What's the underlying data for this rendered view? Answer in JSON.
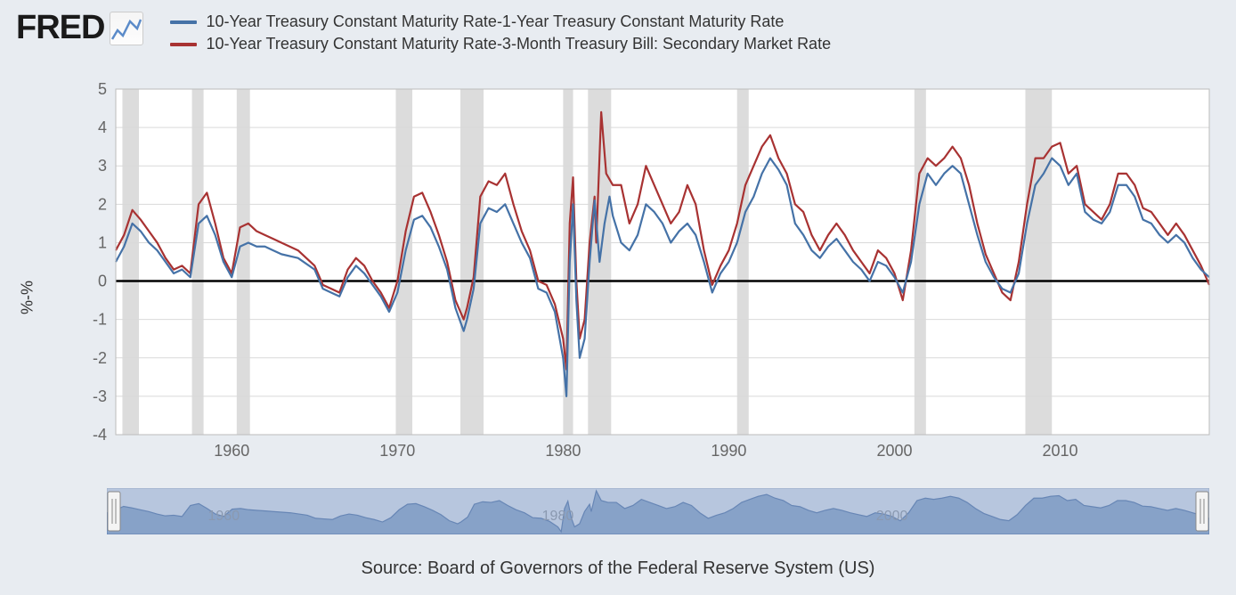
{
  "logo_text": "FRED",
  "legend": {
    "series1": {
      "label": "10-Year Treasury Constant Maturity Rate-1-Year Treasury Constant Maturity Rate",
      "color": "#4572a7"
    },
    "series2": {
      "label": "10-Year Treasury Constant Maturity Rate-3-Month Treasury Bill: Secondary Market Rate",
      "color": "#a83232"
    }
  },
  "y_axis": {
    "label": "%-%",
    "min": -4,
    "max": 5,
    "ticks": [
      -4,
      -3,
      -2,
      -1,
      0,
      1,
      2,
      3,
      4,
      5
    ],
    "tick_color": "#666",
    "tick_fontsize": 18
  },
  "x_axis": {
    "min": 1953,
    "max": 2019,
    "ticks": [
      1960,
      1970,
      1980,
      1990,
      2000,
      2010
    ],
    "tick_color": "#666",
    "tick_fontsize": 18
  },
  "chart": {
    "background": "#ffffff",
    "grid_color": "#d9d9d9",
    "zero_line_color": "#000000",
    "zero_line_width": 2.5,
    "line_width": 2.2,
    "recession_color": "#dcdcdc",
    "recessions": [
      [
        1953.4,
        1954.4
      ],
      [
        1957.6,
        1958.3
      ],
      [
        1960.3,
        1961.1
      ],
      [
        1969.9,
        1970.9
      ],
      [
        1973.8,
        1975.2
      ],
      [
        1980.0,
        1980.6
      ],
      [
        1981.5,
        1982.9
      ],
      [
        1990.5,
        1991.2
      ],
      [
        2001.2,
        2001.9
      ],
      [
        2007.9,
        2009.5
      ]
    ],
    "series1_color": "#4572a7",
    "series2_color": "#a83232",
    "series1": [
      [
        1953,
        0.5
      ],
      [
        1953.5,
        0.9
      ],
      [
        1954,
        1.5
      ],
      [
        1954.5,
        1.3
      ],
      [
        1955,
        1.0
      ],
      [
        1955.5,
        0.8
      ],
      [
        1956,
        0.5
      ],
      [
        1956.5,
        0.2
      ],
      [
        1957,
        0.3
      ],
      [
        1957.5,
        0.1
      ],
      [
        1958,
        1.5
      ],
      [
        1958.5,
        1.7
      ],
      [
        1959,
        1.2
      ],
      [
        1959.5,
        0.5
      ],
      [
        1960,
        0.1
      ],
      [
        1960.5,
        0.9
      ],
      [
        1961,
        1.0
      ],
      [
        1961.5,
        0.9
      ],
      [
        1962,
        0.9
      ],
      [
        1962.5,
        0.8
      ],
      [
        1963,
        0.7
      ],
      [
        1964,
        0.6
      ],
      [
        1965,
        0.3
      ],
      [
        1965.5,
        -0.2
      ],
      [
        1966,
        -0.3
      ],
      [
        1966.5,
        -0.4
      ],
      [
        1967,
        0.1
      ],
      [
        1967.5,
        0.4
      ],
      [
        1968,
        0.2
      ],
      [
        1968.5,
        -0.1
      ],
      [
        1969,
        -0.4
      ],
      [
        1969.5,
        -0.8
      ],
      [
        1970,
        -0.3
      ],
      [
        1970.5,
        0.8
      ],
      [
        1971,
        1.6
      ],
      [
        1971.5,
        1.7
      ],
      [
        1972,
        1.4
      ],
      [
        1972.5,
        0.9
      ],
      [
        1973,
        0.3
      ],
      [
        1973.5,
        -0.7
      ],
      [
        1974,
        -1.3
      ],
      [
        1974.2,
        -1.0
      ],
      [
        1974.6,
        -0.2
      ],
      [
        1975,
        1.5
      ],
      [
        1975.5,
        1.9
      ],
      [
        1976,
        1.8
      ],
      [
        1976.5,
        2.0
      ],
      [
        1977,
        1.5
      ],
      [
        1977.5,
        1.0
      ],
      [
        1978,
        0.6
      ],
      [
        1978.5,
        -0.2
      ],
      [
        1979,
        -0.3
      ],
      [
        1979.5,
        -0.8
      ],
      [
        1980,
        -2.0
      ],
      [
        1980.2,
        -3.0
      ],
      [
        1980.4,
        0.5
      ],
      [
        1980.6,
        2.0
      ],
      [
        1980.8,
        -0.5
      ],
      [
        1981,
        -2.0
      ],
      [
        1981.3,
        -1.5
      ],
      [
        1981.6,
        0.5
      ],
      [
        1981.9,
        2.1
      ],
      [
        1982.2,
        0.5
      ],
      [
        1982.5,
        1.5
      ],
      [
        1982.8,
        2.2
      ],
      [
        1983,
        1.7
      ],
      [
        1983.5,
        1.0
      ],
      [
        1984,
        0.8
      ],
      [
        1984.5,
        1.2
      ],
      [
        1985,
        2.0
      ],
      [
        1985.5,
        1.8
      ],
      [
        1986,
        1.5
      ],
      [
        1986.5,
        1.0
      ],
      [
        1987,
        1.3
      ],
      [
        1987.5,
        1.5
      ],
      [
        1988,
        1.2
      ],
      [
        1988.5,
        0.5
      ],
      [
        1989,
        -0.3
      ],
      [
        1989.5,
        0.2
      ],
      [
        1990,
        0.5
      ],
      [
        1990.5,
        1.0
      ],
      [
        1991,
        1.8
      ],
      [
        1991.5,
        2.2
      ],
      [
        1992,
        2.8
      ],
      [
        1992.5,
        3.2
      ],
      [
        1993,
        2.9
      ],
      [
        1993.5,
        2.5
      ],
      [
        1994,
        1.5
      ],
      [
        1994.5,
        1.2
      ],
      [
        1995,
        0.8
      ],
      [
        1995.5,
        0.6
      ],
      [
        1996,
        0.9
      ],
      [
        1996.5,
        1.1
      ],
      [
        1997,
        0.8
      ],
      [
        1997.5,
        0.5
      ],
      [
        1998,
        0.3
      ],
      [
        1998.5,
        0.0
      ],
      [
        1999,
        0.5
      ],
      [
        1999.5,
        0.4
      ],
      [
        2000,
        0.1
      ],
      [
        2000.5,
        -0.3
      ],
      [
        2001,
        0.5
      ],
      [
        2001.5,
        2.0
      ],
      [
        2002,
        2.8
      ],
      [
        2002.5,
        2.5
      ],
      [
        2003,
        2.8
      ],
      [
        2003.5,
        3.0
      ],
      [
        2004,
        2.8
      ],
      [
        2004.5,
        2.0
      ],
      [
        2005,
        1.2
      ],
      [
        2005.5,
        0.5
      ],
      [
        2006,
        0.1
      ],
      [
        2006.5,
        -0.2
      ],
      [
        2007,
        -0.3
      ],
      [
        2007.5,
        0.2
      ],
      [
        2008,
        1.5
      ],
      [
        2008.5,
        2.5
      ],
      [
        2009,
        2.8
      ],
      [
        2009.5,
        3.2
      ],
      [
        2010,
        3.0
      ],
      [
        2010.5,
        2.5
      ],
      [
        2011,
        2.8
      ],
      [
        2011.5,
        1.8
      ],
      [
        2012,
        1.6
      ],
      [
        2012.5,
        1.5
      ],
      [
        2013,
        1.8
      ],
      [
        2013.5,
        2.5
      ],
      [
        2014,
        2.5
      ],
      [
        2014.5,
        2.2
      ],
      [
        2015,
        1.6
      ],
      [
        2015.5,
        1.5
      ],
      [
        2016,
        1.2
      ],
      [
        2016.5,
        1.0
      ],
      [
        2017,
        1.2
      ],
      [
        2017.5,
        1.0
      ],
      [
        2018,
        0.6
      ],
      [
        2018.5,
        0.3
      ],
      [
        2019,
        0.1
      ]
    ],
    "series2": [
      [
        1953,
        0.8
      ],
      [
        1953.5,
        1.2
      ],
      [
        1954,
        1.85
      ],
      [
        1954.5,
        1.6
      ],
      [
        1955,
        1.3
      ],
      [
        1955.5,
        1.0
      ],
      [
        1956,
        0.6
      ],
      [
        1956.5,
        0.3
      ],
      [
        1957,
        0.4
      ],
      [
        1957.5,
        0.2
      ],
      [
        1958,
        2.0
      ],
      [
        1958.5,
        2.3
      ],
      [
        1959,
        1.5
      ],
      [
        1959.5,
        0.6
      ],
      [
        1960,
        0.2
      ],
      [
        1960.5,
        1.4
      ],
      [
        1961,
        1.5
      ],
      [
        1961.5,
        1.3
      ],
      [
        1962,
        1.2
      ],
      [
        1962.5,
        1.1
      ],
      [
        1963,
        1.0
      ],
      [
        1964,
        0.8
      ],
      [
        1965,
        0.4
      ],
      [
        1965.5,
        -0.1
      ],
      [
        1966,
        -0.2
      ],
      [
        1966.5,
        -0.3
      ],
      [
        1967,
        0.3
      ],
      [
        1967.5,
        0.6
      ],
      [
        1968,
        0.4
      ],
      [
        1968.5,
        0.0
      ],
      [
        1969,
        -0.3
      ],
      [
        1969.5,
        -0.7
      ],
      [
        1970,
        0.0
      ],
      [
        1970.5,
        1.3
      ],
      [
        1971,
        2.2
      ],
      [
        1971.5,
        2.3
      ],
      [
        1972,
        1.8
      ],
      [
        1972.5,
        1.2
      ],
      [
        1973,
        0.5
      ],
      [
        1973.5,
        -0.5
      ],
      [
        1974,
        -1.0
      ],
      [
        1974.2,
        -0.7
      ],
      [
        1974.6,
        0.1
      ],
      [
        1975,
        2.2
      ],
      [
        1975.5,
        2.6
      ],
      [
        1976,
        2.5
      ],
      [
        1976.5,
        2.8
      ],
      [
        1977,
        2.0
      ],
      [
        1977.5,
        1.3
      ],
      [
        1978,
        0.8
      ],
      [
        1978.5,
        0.0
      ],
      [
        1979,
        -0.1
      ],
      [
        1979.5,
        -0.6
      ],
      [
        1980,
        -1.5
      ],
      [
        1980.2,
        -2.3
      ],
      [
        1980.4,
        1.5
      ],
      [
        1980.6,
        2.7
      ],
      [
        1980.8,
        0.0
      ],
      [
        1981,
        -1.5
      ],
      [
        1981.3,
        -1.0
      ],
      [
        1981.6,
        1.0
      ],
      [
        1981.9,
        2.2
      ],
      [
        1982,
        1.0
      ],
      [
        1982.3,
        4.4
      ],
      [
        1982.6,
        2.8
      ],
      [
        1983,
        2.5
      ],
      [
        1983.5,
        2.5
      ],
      [
        1984,
        1.5
      ],
      [
        1984.5,
        2.0
      ],
      [
        1985,
        3.0
      ],
      [
        1985.5,
        2.5
      ],
      [
        1986,
        2.0
      ],
      [
        1986.5,
        1.5
      ],
      [
        1987,
        1.8
      ],
      [
        1987.5,
        2.5
      ],
      [
        1988,
        2.0
      ],
      [
        1988.5,
        0.8
      ],
      [
        1989,
        -0.1
      ],
      [
        1989.5,
        0.4
      ],
      [
        1990,
        0.8
      ],
      [
        1990.5,
        1.5
      ],
      [
        1991,
        2.5
      ],
      [
        1991.5,
        3.0
      ],
      [
        1992,
        3.5
      ],
      [
        1992.5,
        3.8
      ],
      [
        1993,
        3.2
      ],
      [
        1993.5,
        2.8
      ],
      [
        1994,
        2.0
      ],
      [
        1994.5,
        1.8
      ],
      [
        1995,
        1.2
      ],
      [
        1995.5,
        0.8
      ],
      [
        1996,
        1.2
      ],
      [
        1996.5,
        1.5
      ],
      [
        1997,
        1.2
      ],
      [
        1997.5,
        0.8
      ],
      [
        1998,
        0.5
      ],
      [
        1998.5,
        0.2
      ],
      [
        1999,
        0.8
      ],
      [
        1999.5,
        0.6
      ],
      [
        2000,
        0.2
      ],
      [
        2000.5,
        -0.5
      ],
      [
        2001,
        0.8
      ],
      [
        2001.5,
        2.8
      ],
      [
        2002,
        3.2
      ],
      [
        2002.5,
        3.0
      ],
      [
        2003,
        3.2
      ],
      [
        2003.5,
        3.5
      ],
      [
        2004,
        3.2
      ],
      [
        2004.5,
        2.5
      ],
      [
        2005,
        1.5
      ],
      [
        2005.5,
        0.7
      ],
      [
        2006,
        0.2
      ],
      [
        2006.5,
        -0.3
      ],
      [
        2007,
        -0.5
      ],
      [
        2007.5,
        0.5
      ],
      [
        2008,
        2.0
      ],
      [
        2008.5,
        3.2
      ],
      [
        2009,
        3.2
      ],
      [
        2009.5,
        3.5
      ],
      [
        2010,
        3.6
      ],
      [
        2010.5,
        2.8
      ],
      [
        2011,
        3.0
      ],
      [
        2011.5,
        2.0
      ],
      [
        2012,
        1.8
      ],
      [
        2012.5,
        1.6
      ],
      [
        2013,
        2.0
      ],
      [
        2013.5,
        2.8
      ],
      [
        2014,
        2.8
      ],
      [
        2014.5,
        2.5
      ],
      [
        2015,
        1.9
      ],
      [
        2015.5,
        1.8
      ],
      [
        2016,
        1.5
      ],
      [
        2016.5,
        1.2
      ],
      [
        2017,
        1.5
      ],
      [
        2017.5,
        1.2
      ],
      [
        2018,
        0.8
      ],
      [
        2018.5,
        0.4
      ],
      [
        2019,
        -0.1
      ]
    ]
  },
  "brush": {
    "background": "#b7c6de",
    "fill": "#7f9bc4",
    "stroke": "#6786b5",
    "x_ticks": [
      1960,
      1980,
      2000
    ],
    "tick_color": "#8a99b0",
    "tick_fontsize": 16
  },
  "source_text": "Source: Board of Governors of the Federal Reserve System (US)"
}
